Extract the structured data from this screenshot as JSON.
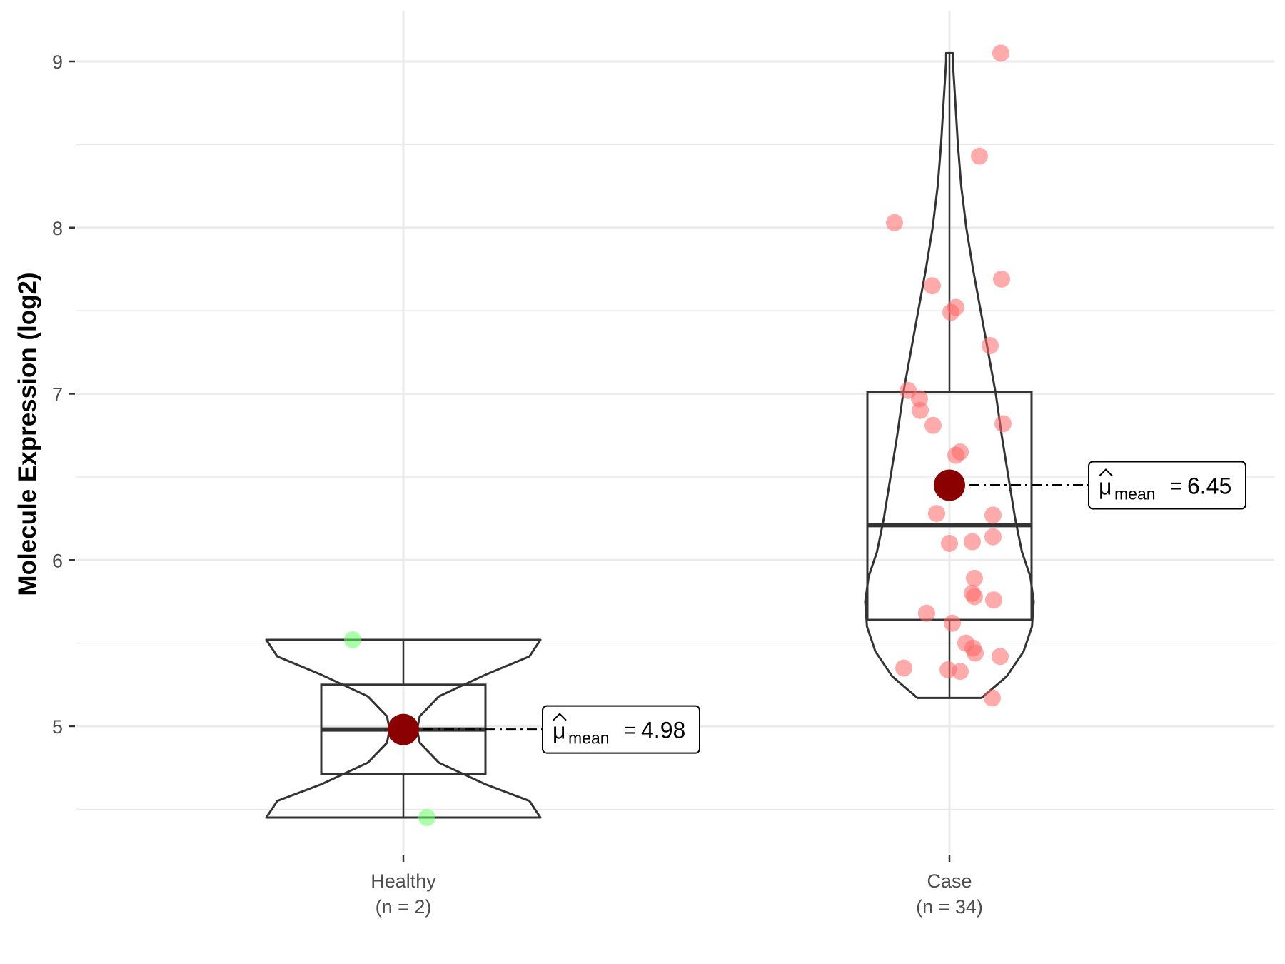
{
  "chart_data": {
    "type": "violin-box",
    "ylabel": "Molecule Expression (log2)",
    "xlabel": "",
    "ylim": [
      4.2,
      9.3
    ],
    "y_ticks": [
      5,
      6,
      7,
      8,
      9
    ],
    "y_tick_labels": [
      "5",
      "6",
      "7",
      "8",
      "9"
    ],
    "grid": true,
    "categories": [
      {
        "name": "Healthy",
        "n_label": "(n = 2)",
        "point_color": "#66ff66",
        "values": [
          5.52,
          4.45
        ],
        "box": {
          "q1": 4.71,
          "median": 4.98,
          "q3": 5.25,
          "whisker_low": 4.45,
          "whisker_high": 5.52
        },
        "mean": 4.98,
        "mean_label": "4.98",
        "violin": [
          [
            4.45,
            1.0
          ],
          [
            4.55,
            0.92
          ],
          [
            4.65,
            0.6
          ],
          [
            4.78,
            0.26
          ],
          [
            4.9,
            0.12
          ],
          [
            4.98,
            0.1
          ],
          [
            5.06,
            0.12
          ],
          [
            5.18,
            0.26
          ],
          [
            5.31,
            0.6
          ],
          [
            5.42,
            0.92
          ],
          [
            5.52,
            1.0
          ]
        ]
      },
      {
        "name": "Case",
        "n_label": "(n = 34)",
        "point_color": "#ff6666",
        "values": [
          9.05,
          8.43,
          8.03,
          7.69,
          7.65,
          7.52,
          7.49,
          7.29,
          7.02,
          6.97,
          6.9,
          6.81,
          6.82,
          6.65,
          6.63,
          6.28,
          6.27,
          6.14,
          6.11,
          6.1,
          5.89,
          5.8,
          5.78,
          5.76,
          5.68,
          5.62,
          5.5,
          5.47,
          5.44,
          5.42,
          5.35,
          5.33,
          5.34,
          5.17
        ],
        "box": {
          "q1": 5.64,
          "median": 6.21,
          "q3": 7.01,
          "whisker_low": 5.17,
          "whisker_high": 9.05
        },
        "mean": 6.45,
        "mean_label": "6.45",
        "violin": [
          [
            5.17,
            0.38
          ],
          [
            5.3,
            0.68
          ],
          [
            5.45,
            0.88
          ],
          [
            5.6,
            0.98
          ],
          [
            5.75,
            1.0
          ],
          [
            5.9,
            0.96
          ],
          [
            6.05,
            0.86
          ],
          [
            6.25,
            0.78
          ],
          [
            6.5,
            0.7
          ],
          [
            6.75,
            0.62
          ],
          [
            7.0,
            0.55
          ],
          [
            7.25,
            0.46
          ],
          [
            7.5,
            0.37
          ],
          [
            7.75,
            0.28
          ],
          [
            8.0,
            0.2
          ],
          [
            8.25,
            0.14
          ],
          [
            8.5,
            0.1
          ],
          [
            8.75,
            0.07
          ],
          [
            9.0,
            0.04
          ],
          [
            9.05,
            0.04
          ]
        ]
      }
    ],
    "mean_annotation": {
      "symbol": "μ",
      "subscript": "mean"
    },
    "colors": {
      "mean_point": "#8b0000",
      "outline": "#333333",
      "grid": "#ebebeb"
    }
  }
}
